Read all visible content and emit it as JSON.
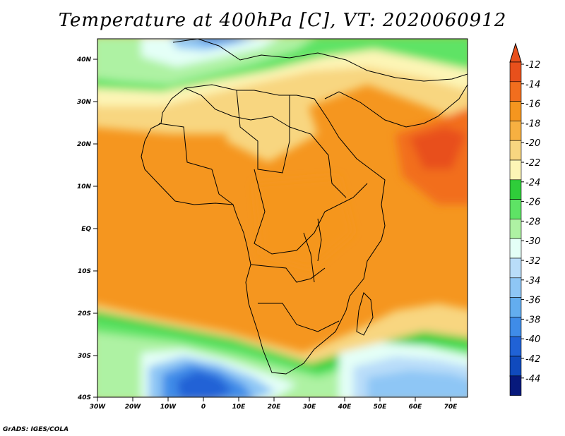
{
  "title": "Temperature at 400hPa [C], VT: 2020060912",
  "credit": "GrADS: IGES/COLA",
  "map": {
    "lon_labels": [
      "30W",
      "20W",
      "10W",
      "0",
      "10E",
      "20E",
      "30E",
      "40E",
      "50E",
      "60E",
      "70E"
    ],
    "lat_labels": [
      "40N",
      "30N",
      "20N",
      "10N",
      "EQ",
      "10S",
      "20S",
      "30S",
      "40S"
    ]
  },
  "colorbar": {
    "labels": [
      "-12",
      "-14",
      "-16",
      "-18",
      "-20",
      "-22",
      "-24",
      "-26",
      "-28",
      "-30",
      "-32",
      "-34",
      "-36",
      "-38",
      "-40",
      "-42",
      "-44"
    ],
    "colors": [
      "#e8501c",
      "#f26e1e",
      "#f5961f",
      "#f7b041",
      "#f8d680",
      "#fdf5b6",
      "#2fcd3a",
      "#5ee365",
      "#aef2a3",
      "#e4fff7",
      "#b9ddf9",
      "#8ec6f5",
      "#63adef",
      "#3f8ce8",
      "#2062d6",
      "#104abd",
      "#07197c"
    ],
    "top_arrow_color": "#e8501c",
    "bottom_arrow_color": "#e5e2ff"
  }
}
